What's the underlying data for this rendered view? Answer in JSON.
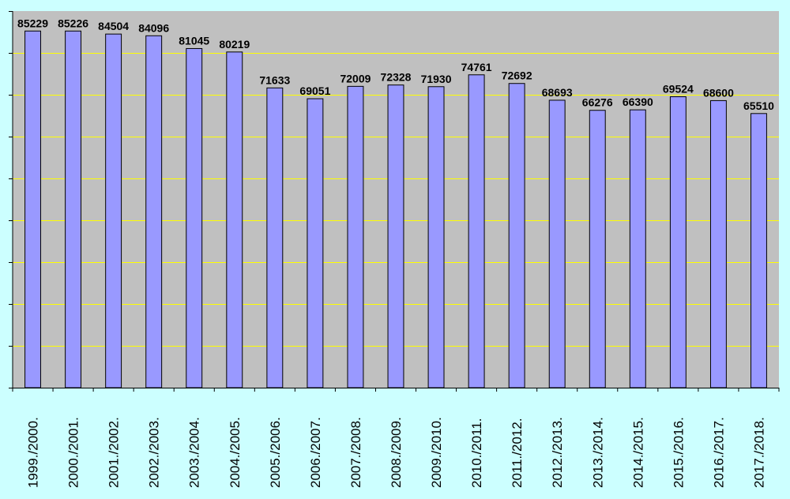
{
  "chart_data": {
    "type": "bar",
    "categories": [
      "1999./2000.",
      "2000./2001.",
      "2001./2002.",
      "2002./2003.",
      "2003./2004.",
      "2004./2005.",
      "2005./2006.",
      "2006./2007.",
      "2007./2008.",
      "2008./2009.",
      "2009./2010.",
      "2010./2011.",
      "2011./2012.",
      "2012./2013.",
      "2013./2014.",
      "2014./2015.",
      "2015./2016.",
      "2016./2017.",
      "2017./2018."
    ],
    "values": [
      85229,
      85226,
      84504,
      84096,
      81045,
      80219,
      71633,
      69051,
      72009,
      72328,
      71930,
      74761,
      72692,
      68693,
      66276,
      66390,
      69524,
      68600,
      65510
    ],
    "data_labels": [
      "85229",
      "85226",
      "84504",
      "84096",
      "81045",
      "80219",
      "71633",
      "69051",
      "72009",
      "72328",
      "71930",
      "74761",
      "72692",
      "68693",
      "66276",
      "66390",
      "69524",
      "68600",
      "65510"
    ],
    "title": "",
    "xlabel": "",
    "ylabel": "",
    "ylim": [
      0,
      90000
    ],
    "ytick_step": 10000,
    "y_tick_labels_shown": false,
    "grid": true,
    "legend": "none",
    "colors": {
      "page_background": "#ccffff",
      "plot_background": "#c0c0c0",
      "gridline": "#ffff00",
      "bar_fill": "#9999ff",
      "bar_stroke": "#000000",
      "text": "#000000"
    }
  }
}
